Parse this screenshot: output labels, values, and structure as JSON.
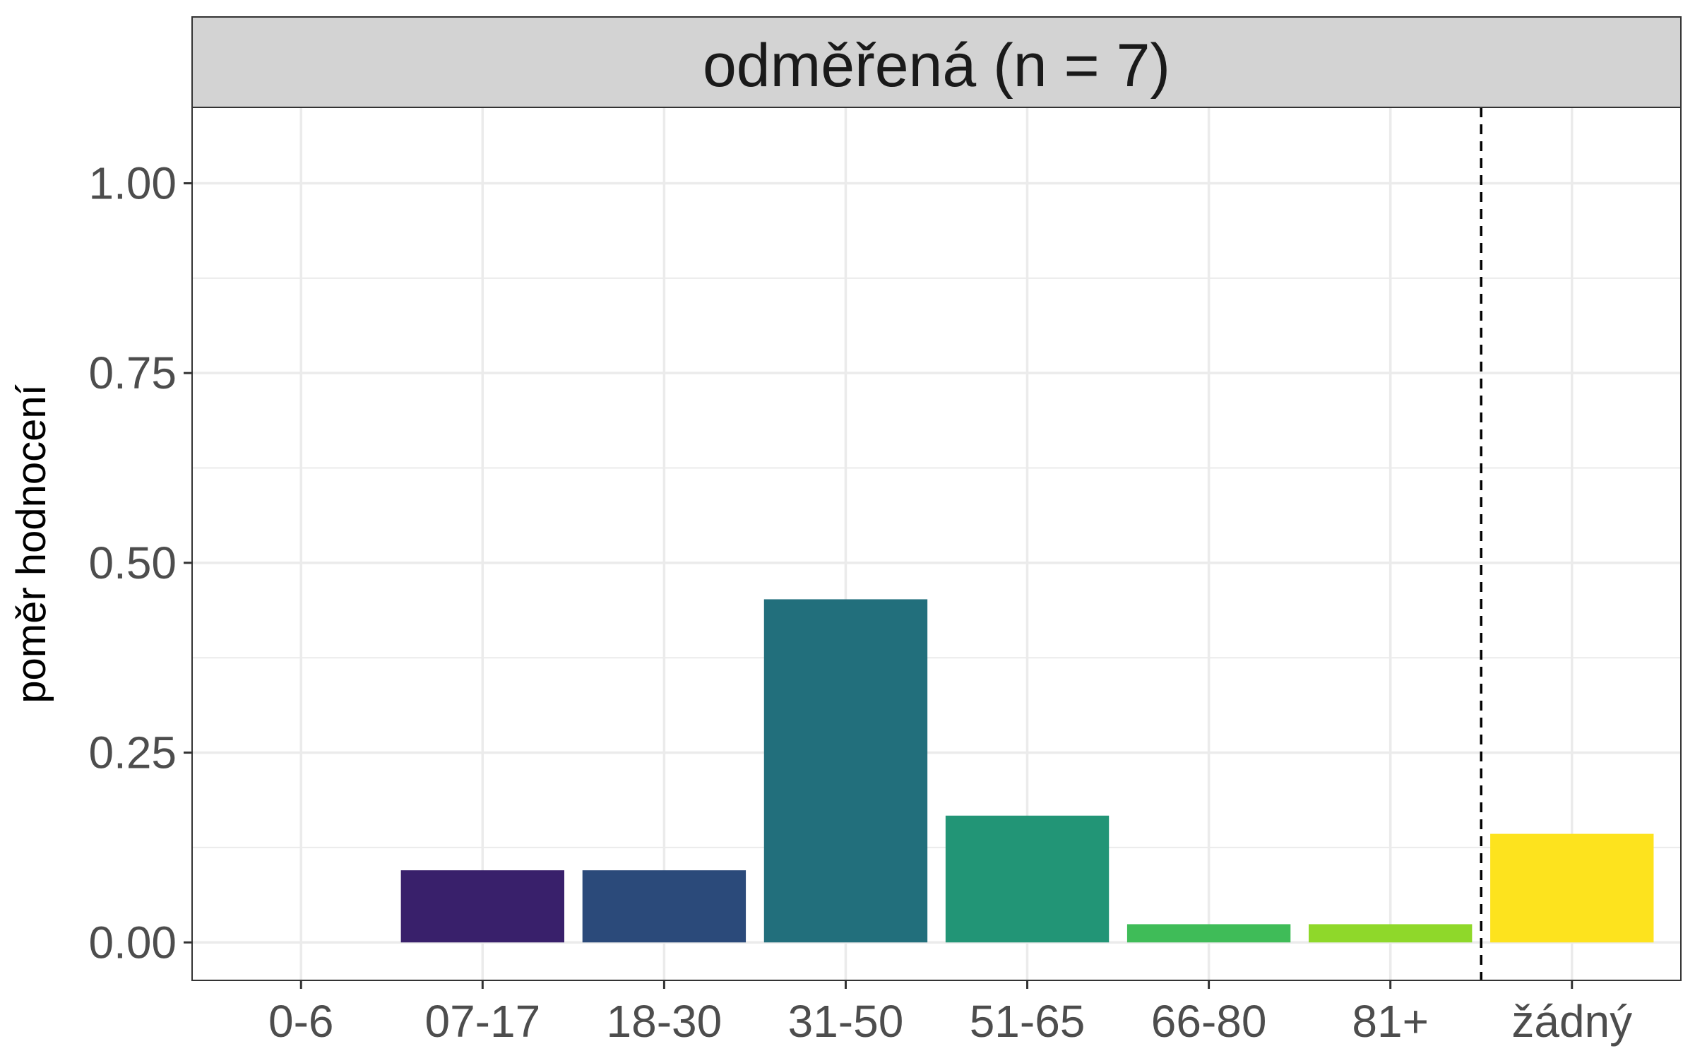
{
  "chart_data": {
    "type": "bar",
    "facet_title": "odměřená (n = 7)",
    "ylabel": "poměr hodnocení",
    "xlabel": "",
    "categories": [
      "0-6",
      "07-17",
      "18-30",
      "31-50",
      "51-65",
      "66-80",
      "81+",
      "žádný"
    ],
    "values": [
      0.0,
      0.095,
      0.095,
      0.452,
      0.167,
      0.024,
      0.024,
      0.143
    ],
    "bar_colors": [
      "#440154",
      "#39206b",
      "#2b4a7a",
      "#226f7c",
      "#229576",
      "#3fbc58",
      "#8fd82a",
      "#fde31e"
    ],
    "y_ticks": [
      "0.00",
      "0.25",
      "0.50",
      "0.75",
      "1.00"
    ],
    "y_tick_values": [
      0,
      0.25,
      0.5,
      0.75,
      1.0
    ],
    "ylim": [
      -0.05,
      1.1
    ],
    "reference_line_after_category": "81+",
    "grid": true,
    "colors": {
      "strip_fill": "#d3d3d3",
      "grid": "#ebebeb",
      "axis_text": "#4d4d4d",
      "frame": "#333333"
    }
  }
}
